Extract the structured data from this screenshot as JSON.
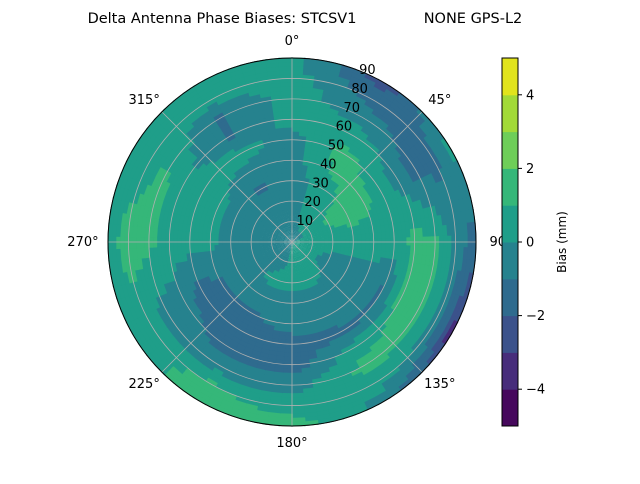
{
  "chart_data": {
    "type": "heatmap",
    "subtype": "polar-contour",
    "title": "Delta Antenna Phase Biases: STCSV1",
    "title_right": "NONE GPS-L2",
    "angular_direction": "clockwise",
    "angular_zero": "north",
    "angular_ticks": [
      "0°",
      "45°",
      "90°",
      "135°",
      "180°",
      "225°",
      "270°",
      "315°"
    ],
    "angular_tick_values": [
      0,
      45,
      90,
      135,
      180,
      225,
      270,
      315
    ],
    "radial_ticks": [
      "10",
      "20",
      "30",
      "40",
      "50",
      "60",
      "70",
      "80",
      "90"
    ],
    "radial_tick_values": [
      10,
      20,
      30,
      40,
      50,
      60,
      70,
      80,
      90
    ],
    "rlim": [
      0,
      90
    ],
    "grid": true,
    "colorbar": {
      "label": "Bias (mm)",
      "levels": [
        -5,
        -4,
        -3,
        -2,
        -1,
        0,
        1,
        2,
        3,
        4,
        5
      ],
      "ticks": [
        "−4",
        "−2",
        "0",
        "2",
        "4"
      ],
      "tick_values": [
        -4,
        -2,
        0,
        2,
        4
      ],
      "colors": [
        "#46085c",
        "#472d7b",
        "#3b528b",
        "#2f6b8e",
        "#26828e",
        "#1f9e89",
        "#35b779",
        "#6ece58",
        "#a2da37",
        "#e1e41c"
      ],
      "colormap": "viridis"
    },
    "azimuth": [
      0,
      30,
      60,
      90,
      120,
      150,
      180,
      210,
      240,
      270,
      300,
      330
    ],
    "zenith": [
      0,
      10,
      20,
      30,
      40,
      50,
      60,
      70,
      80,
      90
    ],
    "values": [
      [
        -0.5,
        -0.5,
        -0.5,
        -0.5,
        -0.5,
        -0.5,
        0.5,
        0.5,
        0.5,
        0.3
      ],
      [
        -0.5,
        0.3,
        0.5,
        0.5,
        1.2,
        1.3,
        0.5,
        -0.5,
        -1.5,
        -2.5
      ],
      [
        -0.5,
        0.3,
        1.2,
        1.5,
        1.3,
        0.5,
        -0.5,
        -1.5,
        -1.2,
        0.5
      ],
      [
        0.3,
        0.3,
        0.5,
        0.5,
        0.5,
        0.5,
        1.3,
        1.3,
        -0.5,
        -1.5
      ],
      [
        0.3,
        0.3,
        -0.5,
        -0.5,
        -0.5,
        -1.2,
        1.3,
        1.5,
        -0.5,
        -3.5
      ],
      [
        0.3,
        0.3,
        0.3,
        -0.5,
        -0.5,
        -1.2,
        0.5,
        1.3,
        0.5,
        -0.5
      ],
      [
        0.3,
        0.3,
        0.5,
        -0.5,
        -0.5,
        -1.5,
        -1.5,
        -0.5,
        0.5,
        1.5
      ],
      [
        -0.5,
        -0.5,
        0.3,
        -0.5,
        -1.2,
        -1.5,
        -1.5,
        -0.5,
        1.2,
        1.5
      ],
      [
        -0.5,
        -0.5,
        -0.5,
        -0.5,
        -1.2,
        -1.5,
        -0.5,
        -0.5,
        0.5,
        0.5
      ],
      [
        -0.5,
        -0.5,
        -0.5,
        -0.5,
        0.3,
        0.5,
        0.5,
        1.3,
        1.5,
        0.5
      ],
      [
        -0.5,
        -0.5,
        -0.5,
        -0.5,
        0.3,
        0.5,
        0.5,
        1.2,
        0.5,
        0.5
      ],
      [
        -0.5,
        -0.5,
        -0.5,
        -1.2,
        -0.5,
        0.5,
        -1.2,
        -1.2,
        0.5,
        0.5
      ]
    ]
  }
}
